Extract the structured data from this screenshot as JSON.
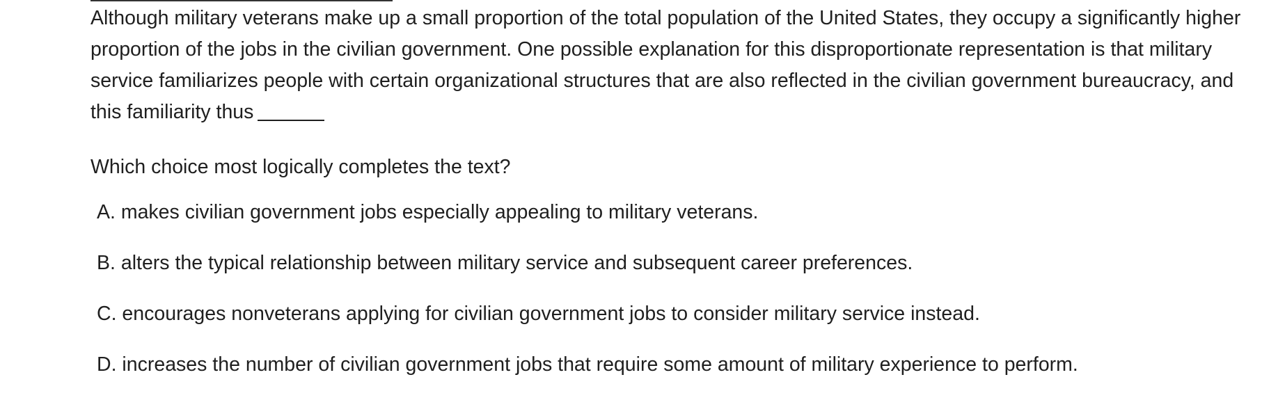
{
  "passage": {
    "text": "Although military veterans make up a small proportion of the total population of the United States, they occupy a significantly higher proportion of the jobs in the civilian government. One possible explanation for this disproportionate representation is that military service familiarizes people with certain organizational structures that are also reflected in the civilian government bureaucracy, and this familiarity thus"
  },
  "question": {
    "prompt": "Which choice most logically completes the text?"
  },
  "choices": [
    {
      "label": "A. makes civilian government jobs especially appealing to military veterans."
    },
    {
      "label": "B. alters the typical relationship between military service and subsequent career preferences."
    },
    {
      "label": "C. encourages nonveterans applying for civilian government jobs to consider military service instead."
    },
    {
      "label": "D. increases the number of civilian government jobs that require some amount of military experience to perform."
    }
  ]
}
